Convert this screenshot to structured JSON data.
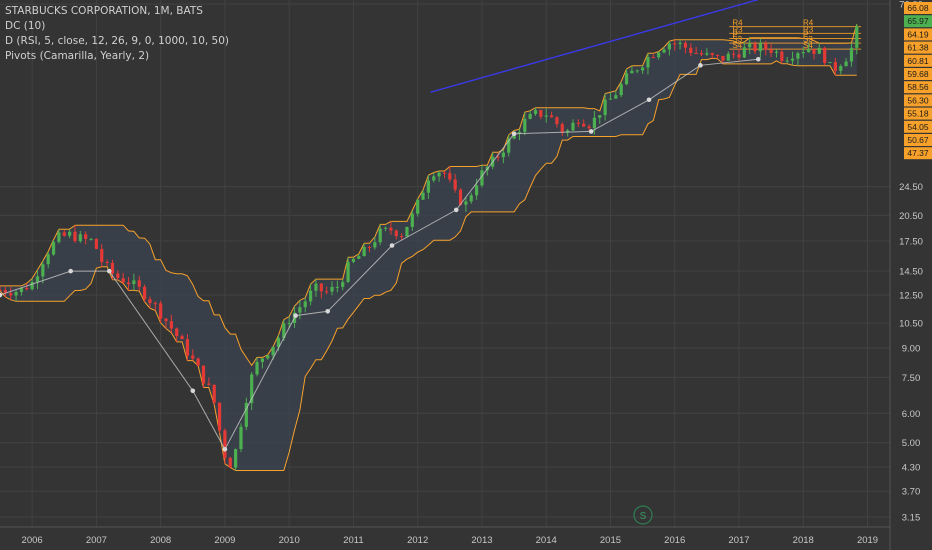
{
  "legend": {
    "title": "STARBUCKS CORPORATION, 1M, BATS",
    "indicator1": "DC (10)",
    "indicator2": "D (RSI, 5, close, 12, 26, 9, 0, 1000, 10, 50)",
    "indicator3": "Pivots (Camarilla, Yearly, 2)"
  },
  "watermark": "S",
  "colors": {
    "background": "#343434",
    "grid": "#424242",
    "up": "#4caf50",
    "down": "#e53935",
    "channel": "#f7a12a",
    "channel_fill": "#3c4452",
    "trendline": "#3a3af0",
    "zigzag": "#c8c8c8",
    "text": "#c8c8c8"
  },
  "chart_data": {
    "type": "candlestick",
    "title": "STARBUCKS CORPORATION, 1M, BATS",
    "x_ticks": [
      "2006",
      "2007",
      "2008",
      "2009",
      "2010",
      "2011",
      "2012",
      "2013",
      "2014",
      "2015",
      "2016",
      "2017",
      "2018",
      "2019"
    ],
    "y_ticks": [
      "76.00",
      "24.50",
      "20.50",
      "17.50",
      "14.50",
      "12.50",
      "10.50",
      "9.00",
      "7.50",
      "6.00",
      "5.00",
      "4.30",
      "3.70",
      "3.15"
    ],
    "y_scale": "log",
    "ylim": [
      3.0,
      78.0
    ],
    "price_labels": [
      {
        "text": "66.08",
        "bg": "#f7a12a"
      },
      {
        "text": "65.97",
        "bg": "#4caf50"
      },
      {
        "text": "64.19",
        "bg": "#f7a12a"
      },
      {
        "text": "61.38",
        "bg": "#f7a12a"
      },
      {
        "text": "60.81",
        "bg": "#f7a12a"
      },
      {
        "text": "59.68",
        "bg": "#f7a12a"
      },
      {
        "text": "58.56",
        "bg": "#f7a12a"
      },
      {
        "text": "56.30",
        "bg": "#f7a12a"
      },
      {
        "text": "55.18",
        "bg": "#f7a12a"
      },
      {
        "text": "54.05",
        "bg": "#f7a12a"
      },
      {
        "text": "50.67",
        "bg": "#f7a12a"
      },
      {
        "text": "47.37",
        "bg": "#f7a12a"
      }
    ],
    "close_anchors": [
      [
        2005.5,
        12.9
      ],
      [
        2005.8,
        12.8
      ],
      [
        2006.0,
        13.5
      ],
      [
        2006.2,
        16.0
      ],
      [
        2006.4,
        17.8
      ],
      [
        2006.6,
        18.2
      ],
      [
        2006.8,
        17.6
      ],
      [
        2006.95,
        17.5
      ],
      [
        2007.1,
        15.2
      ],
      [
        2007.3,
        14.0
      ],
      [
        2007.5,
        13.6
      ],
      [
        2007.75,
        12.6
      ],
      [
        2007.95,
        11.5
      ],
      [
        2008.2,
        10.0
      ],
      [
        2008.4,
        8.9
      ],
      [
        2008.6,
        7.8
      ],
      [
        2008.75,
        7.0
      ],
      [
        2008.85,
        6.3
      ],
      [
        2008.95,
        5.0
      ],
      [
        2009.05,
        4.3
      ],
      [
        2009.15,
        4.6
      ],
      [
        2009.3,
        6.3
      ],
      [
        2009.45,
        7.9
      ],
      [
        2009.6,
        8.6
      ],
      [
        2009.8,
        9.4
      ],
      [
        2010.0,
        10.8
      ],
      [
        2010.2,
        11.8
      ],
      [
        2010.4,
        13.0
      ],
      [
        2010.6,
        12.7
      ],
      [
        2010.75,
        13.2
      ],
      [
        2010.95,
        15.2
      ],
      [
        2011.2,
        16.5
      ],
      [
        2011.4,
        18.3
      ],
      [
        2011.6,
        18.8
      ],
      [
        2011.75,
        18.3
      ],
      [
        2011.95,
        20.8
      ],
      [
        2012.1,
        24.5
      ],
      [
        2012.2,
        27.0
      ],
      [
        2012.4,
        27.0
      ],
      [
        2012.6,
        23.0
      ],
      [
        2012.75,
        22.0
      ],
      [
        2012.95,
        26.0
      ],
      [
        2013.2,
        29.0
      ],
      [
        2013.45,
        33.0
      ],
      [
        2013.65,
        36.5
      ],
      [
        2013.85,
        38.5
      ],
      [
        2014.0,
        38.5
      ],
      [
        2014.15,
        36.5
      ],
      [
        2014.3,
        34.0
      ],
      [
        2014.5,
        37.5
      ],
      [
        2014.7,
        36.0
      ],
      [
        2014.85,
        39.5
      ],
      [
        2015.05,
        43.0
      ],
      [
        2015.25,
        48.0
      ],
      [
        2015.45,
        52.0
      ],
      [
        2015.7,
        57.0
      ],
      [
        2015.9,
        60.0
      ],
      [
        2016.1,
        59.0
      ],
      [
        2016.3,
        56.5
      ],
      [
        2016.5,
        55.0
      ],
      [
        2016.7,
        54.0
      ],
      [
        2016.9,
        55.5
      ],
      [
        2017.1,
        57.5
      ],
      [
        2017.3,
        58.0
      ],
      [
        2017.5,
        57.5
      ],
      [
        2017.7,
        54.5
      ],
      [
        2017.9,
        57.0
      ],
      [
        2018.1,
        58.0
      ],
      [
        2018.3,
        56.0
      ],
      [
        2018.45,
        50.0
      ],
      [
        2018.55,
        52.5
      ],
      [
        2018.7,
        55.5
      ],
      [
        2018.8,
        60.0
      ],
      [
        2018.85,
        66.5
      ]
    ],
    "trendline": {
      "from": [
        2012.2,
        44.0
      ],
      "to": [
        2017.5,
        80.0
      ]
    },
    "zigzag_points": [
      [
        2005.5,
        12.5
      ],
      [
        2006.6,
        14.5
      ],
      [
        2007.2,
        14.5
      ],
      [
        2008.5,
        6.9
      ],
      [
        2009.0,
        4.8
      ],
      [
        2010.1,
        11.0
      ],
      [
        2010.6,
        11.3
      ],
      [
        2011.6,
        17.0
      ],
      [
        2012.6,
        21.2
      ],
      [
        2013.5,
        34.0
      ],
      [
        2014.7,
        34.5
      ],
      [
        2015.6,
        42.0
      ],
      [
        2016.4,
        52.0
      ],
      [
        2017.3,
        54.0
      ]
    ],
    "pivot_levels": [
      {
        "name": "R4",
        "value": 66.1
      },
      {
        "name": "R3",
        "value": 63.4
      },
      {
        "name": "P",
        "value": 61.4
      },
      {
        "name": "S3",
        "value": 59.7
      },
      {
        "name": "S4",
        "value": 57.5
      }
    ],
    "pivot_segments": [
      {
        "x0": 2016.85,
        "x1": 2017.95,
        "shift": 0.0
      },
      {
        "x0": 2017.95,
        "x1": 2018.9,
        "shift": 0.0
      }
    ]
  }
}
